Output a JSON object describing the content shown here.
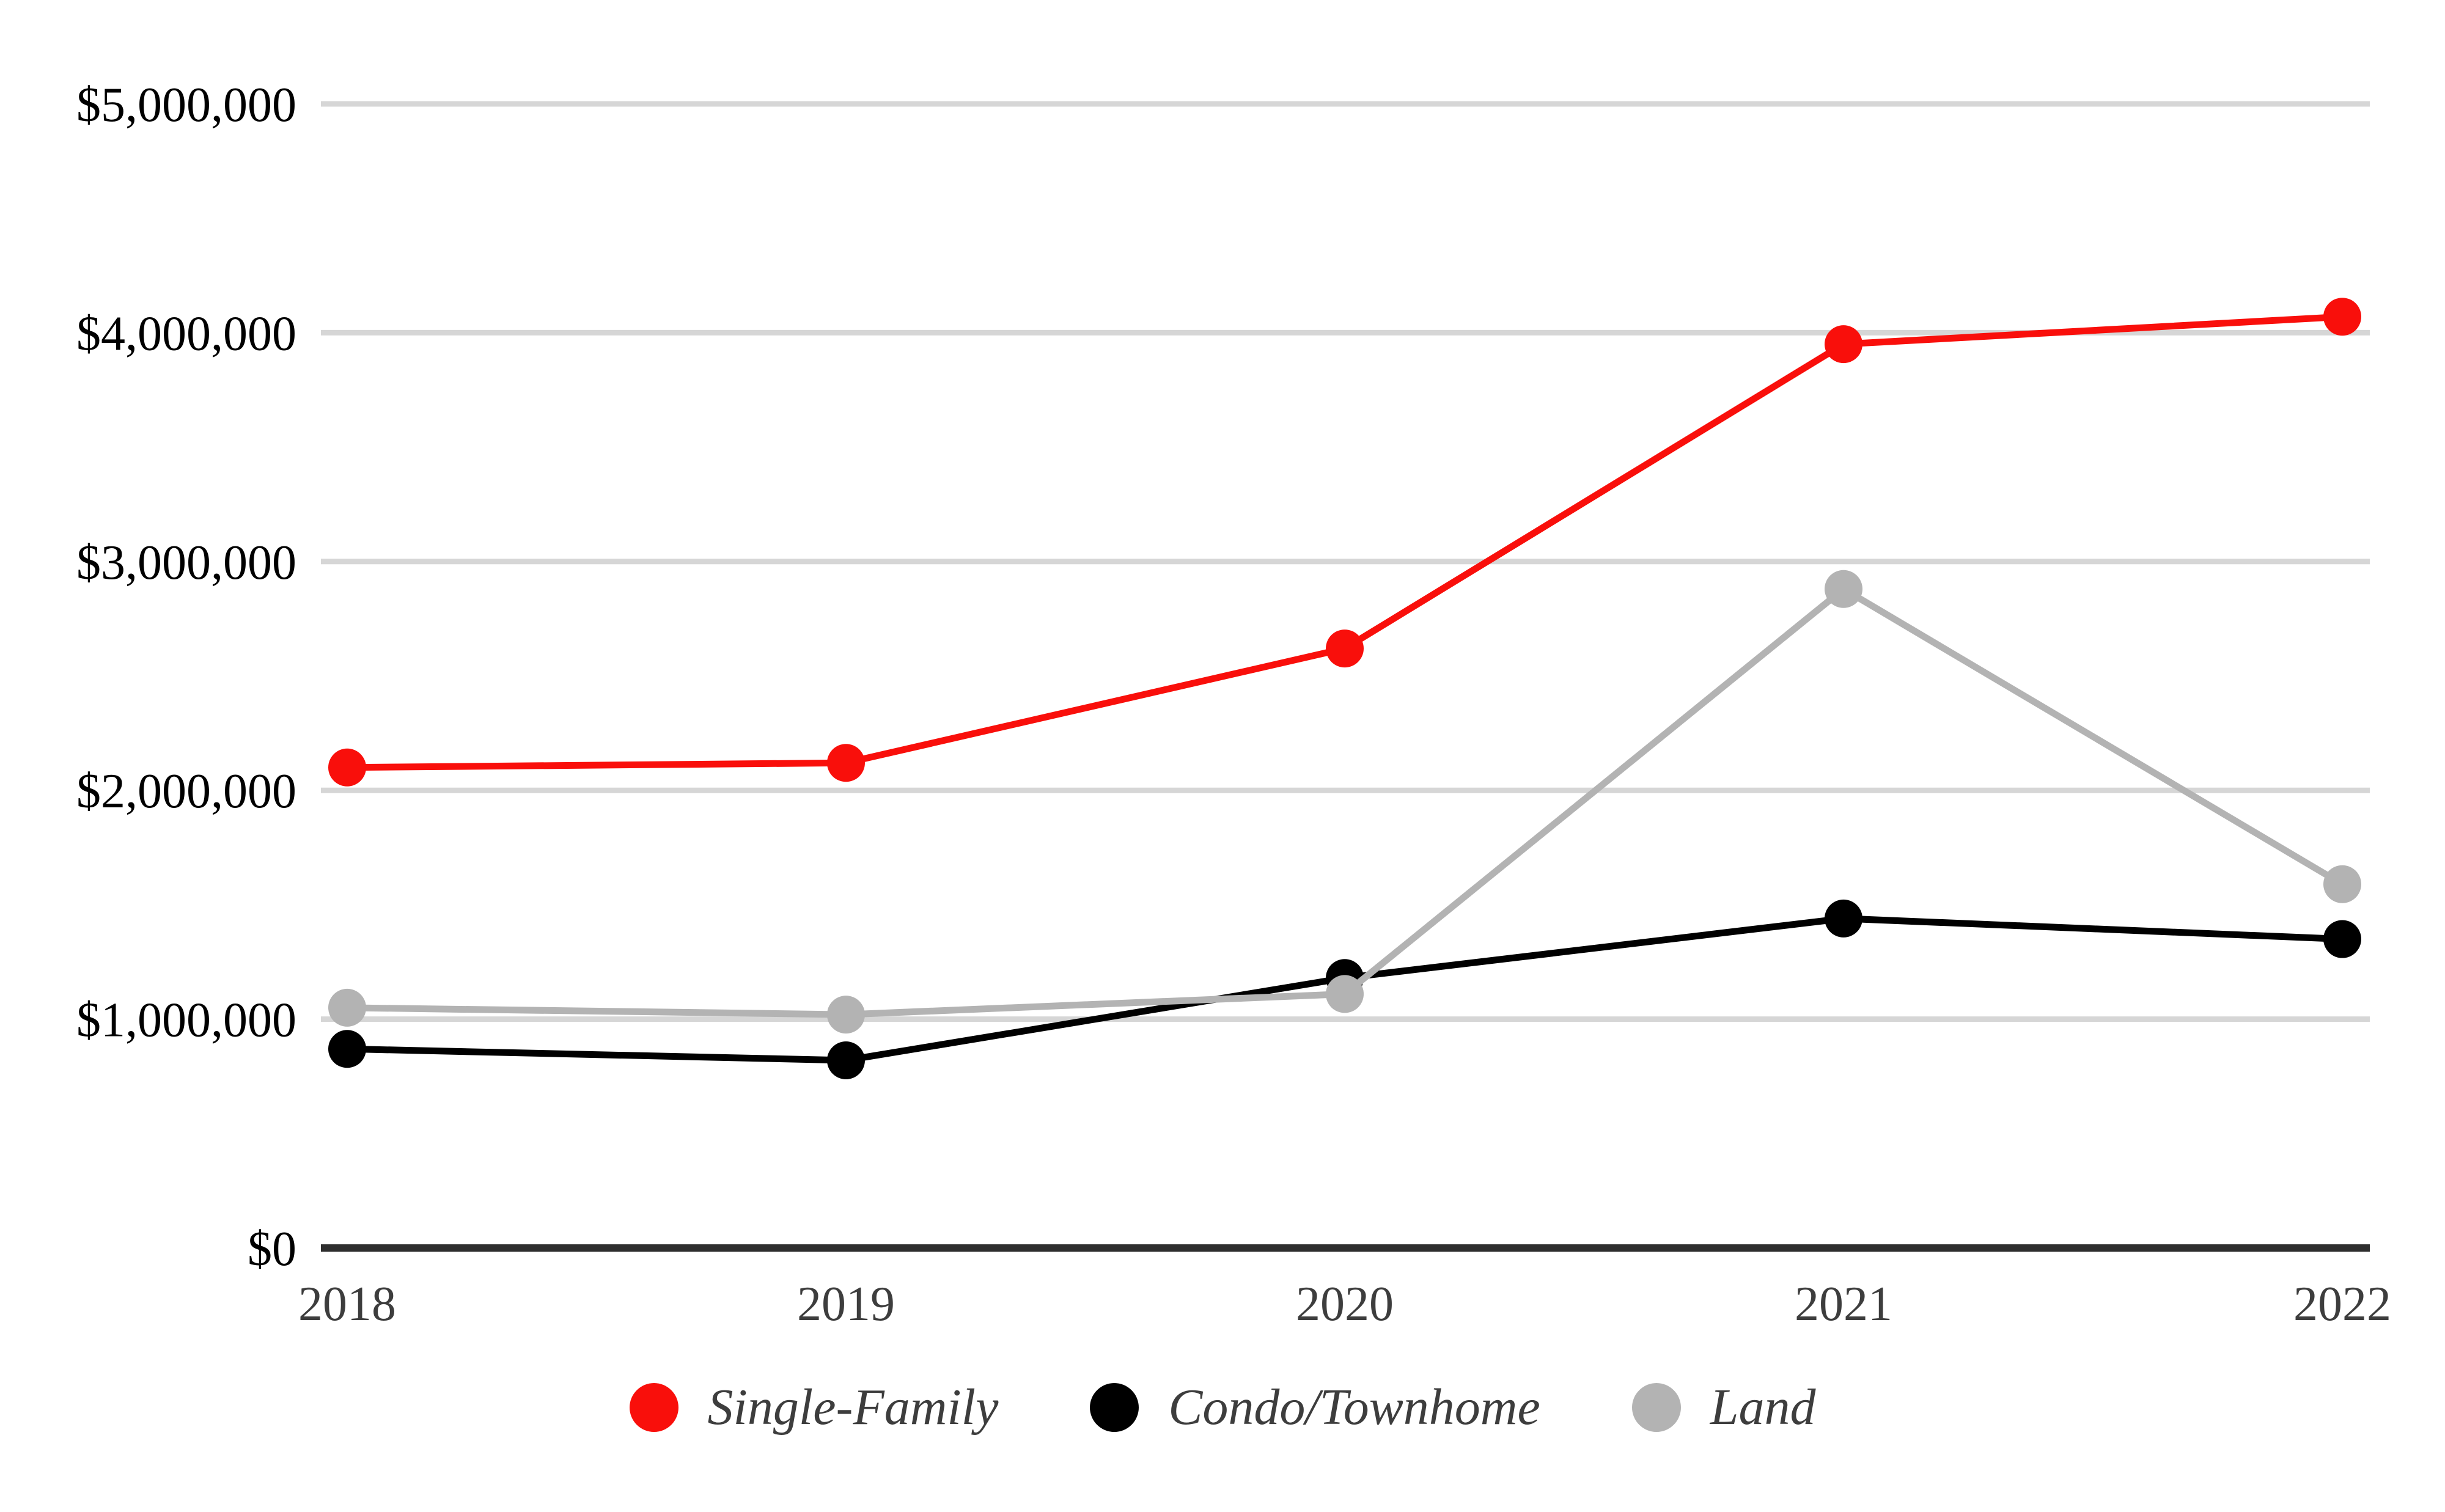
{
  "page": {
    "background": "#ffffff"
  },
  "chart_data": {
    "type": "line",
    "title": "",
    "xlabel": "",
    "ylabel": "",
    "categories": [
      "2018",
      "2019",
      "2020",
      "2021",
      "2022"
    ],
    "series": [
      {
        "name": "Single-Family",
        "color": "#f90f0b",
        "values": [
          2100000,
          2120000,
          2620000,
          3950000,
          4070000
        ]
      },
      {
        "name": "Condo/Townhome",
        "color": "#000000",
        "values": [
          870000,
          820000,
          1180000,
          1440000,
          1350000
        ]
      },
      {
        "name": "Land",
        "color": "#b3b3b3",
        "values": [
          1050000,
          1020000,
          1110000,
          2880000,
          1590000
        ]
      }
    ],
    "y_ticks": [
      {
        "value": 0,
        "label": "$0"
      },
      {
        "value": 1000000,
        "label": "$1,000,000"
      },
      {
        "value": 2000000,
        "label": "$2,000,000"
      },
      {
        "value": 3000000,
        "label": "$3,000,000"
      },
      {
        "value": 4000000,
        "label": "$4,000,000"
      },
      {
        "value": 5000000,
        "label": "$5,000,000"
      }
    ],
    "ylim": [
      0,
      5000000
    ],
    "grid": true,
    "legend_position": "bottom",
    "colors": {
      "gridline": "#d6d6d6",
      "axis_line": "#2e2e2e",
      "y_tick_label": "#000000",
      "x_tick_label": "#3d3d3d",
      "legend_text": "#3d3d3d"
    }
  }
}
